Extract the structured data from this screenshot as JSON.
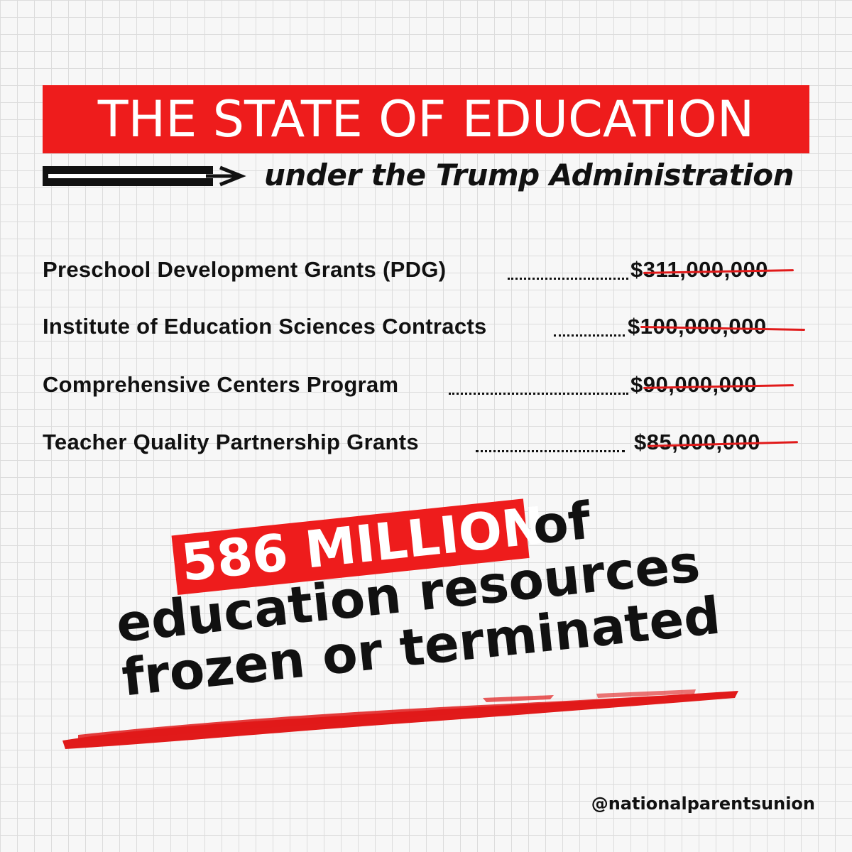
{
  "header": {
    "title": "THE STATE OF EDUCATION",
    "subtitle": "under the Trump Administration",
    "accent_color": "#ee1c1c"
  },
  "items": [
    {
      "label": "Preschool Development Grants (PDG)",
      "amount": "$311,000,000"
    },
    {
      "label": "Institute of Education Sciences Contracts",
      "amount": "$100,000,000"
    },
    {
      "label": "Comprehensive Centers Program",
      "amount": "$90,000,000"
    },
    {
      "label": "Teacher Quality Partnership Grants",
      "amount": "$85,000,000"
    }
  ],
  "headline": {
    "highlight": "586 MILLION",
    "line1_rest": "of",
    "line2": "education resources",
    "line3": "frozen or terminated"
  },
  "footer": {
    "handle": "@nationalparentsunion"
  }
}
